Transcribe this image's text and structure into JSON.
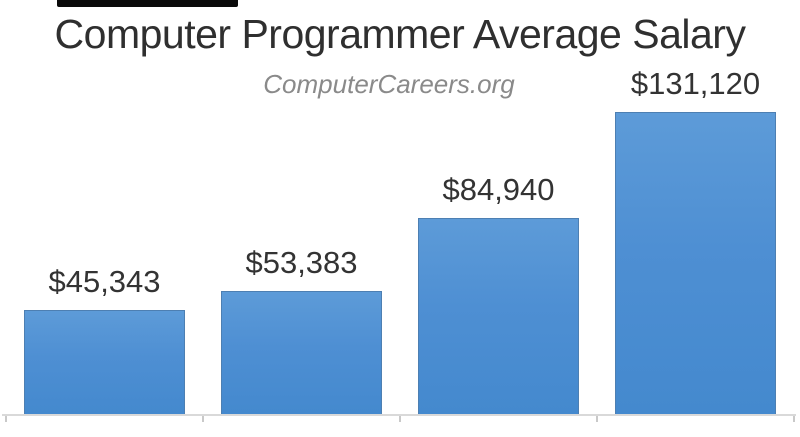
{
  "chart_data": {
    "type": "bar",
    "title": "Computer Programmer Average Salary",
    "subtitle": "ComputerCareers.org",
    "categories": [
      "",
      "",
      "",
      ""
    ],
    "values": [
      45343,
      53383,
      84940,
      131120
    ],
    "data_labels": [
      "$45,343",
      "$53,383",
      "$84,940",
      "$131,120"
    ],
    "ylim": [
      0,
      131120
    ],
    "grid": false,
    "legend": false,
    "xlabel": "",
    "ylabel": "",
    "colors": {
      "bar_top": "#5d9bd8",
      "bar_bottom": "#4489ce",
      "bar_border": "#4d7fb2",
      "title_text": "#2f2f2f",
      "subtitle_text": "#8a8a8a",
      "label_text": "#333333",
      "axis_line": "#d9d9d9",
      "tick": "#c9c9c9",
      "top_artifact": "#0a0a0a"
    }
  }
}
